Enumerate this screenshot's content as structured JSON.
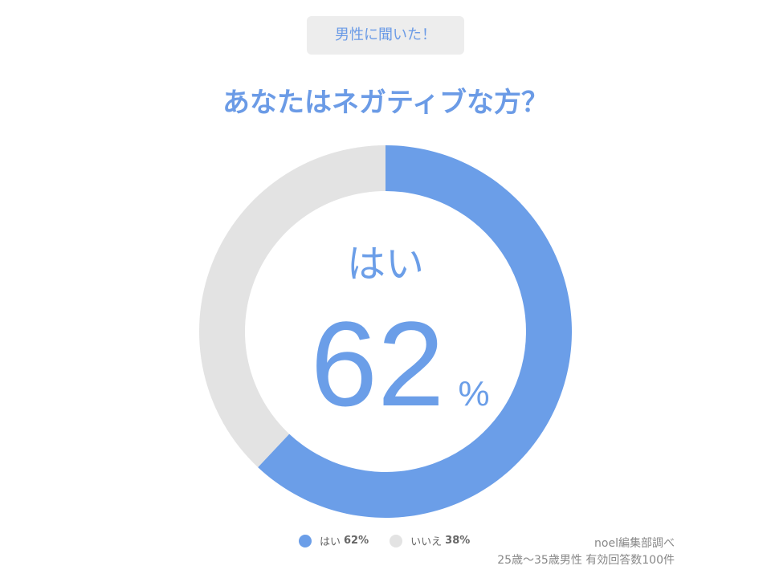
{
  "header": {
    "badge": "男性に聞いた！",
    "title": "あなたはネガティブな方？"
  },
  "center": {
    "label": "はい",
    "value": "62",
    "unit": "%"
  },
  "chart_data": {
    "type": "pie",
    "donut": true,
    "categories": [
      "はい",
      "いいえ"
    ],
    "values": [
      62,
      38
    ],
    "colors": [
      "#6b9ee8",
      "#e3e3e3"
    ],
    "legend_placement": "bottom",
    "legend_labels": [
      "はい 62%",
      "いいえ 38%"
    ]
  },
  "legend": [
    {
      "label": "はい",
      "value": "62%",
      "color": "#6b9ee8"
    },
    {
      "label": "いいえ",
      "value": "38%",
      "color": "#e3e3e3"
    }
  ],
  "source": {
    "line1": "noel編集部調べ",
    "line2": "25歳〜35歳男性 有効回答数100件"
  }
}
